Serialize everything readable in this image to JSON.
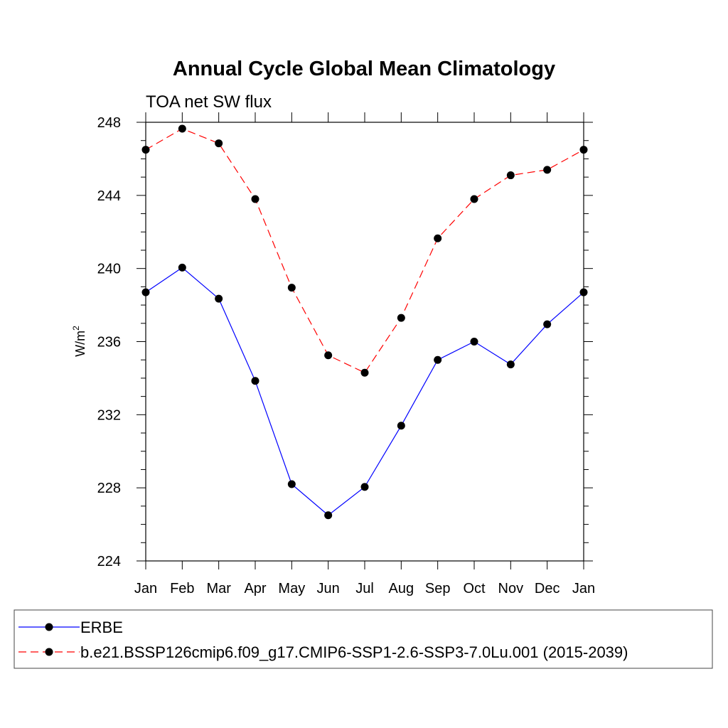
{
  "chart_data": {
    "type": "line",
    "title": "Annual Cycle Global Mean Climatology",
    "subtitle": "TOA net SW flux",
    "xlabel": "",
    "ylabel": "W/m",
    "ylabel_sup": "2",
    "categories": [
      "Jan",
      "Feb",
      "Mar",
      "Apr",
      "May",
      "Jun",
      "Jul",
      "Aug",
      "Sep",
      "Oct",
      "Nov",
      "Dec",
      "Jan"
    ],
    "ylim": [
      224,
      248
    ],
    "yticks": [
      224,
      228,
      232,
      236,
      240,
      244,
      248
    ],
    "legend_position": "bottom",
    "series": [
      {
        "name": "ERBE",
        "color": "#0000ff",
        "line_style": "solid",
        "values": [
          238.7,
          240.05,
          238.35,
          233.85,
          228.2,
          226.5,
          228.05,
          231.4,
          235.0,
          236.0,
          234.75,
          236.95,
          238.7
        ]
      },
      {
        "name": "b.e21.BSSP126cmip6.f09_g17.CMIP6-SSP1-2.6-SSP3-7.0Lu.001 (2015-2039)",
        "color": "#ff0000",
        "line_style": "dashed",
        "values": [
          246.5,
          247.65,
          246.85,
          243.8,
          238.95,
          235.25,
          234.3,
          237.3,
          241.65,
          243.8,
          245.1,
          245.4,
          246.5
        ]
      }
    ]
  }
}
